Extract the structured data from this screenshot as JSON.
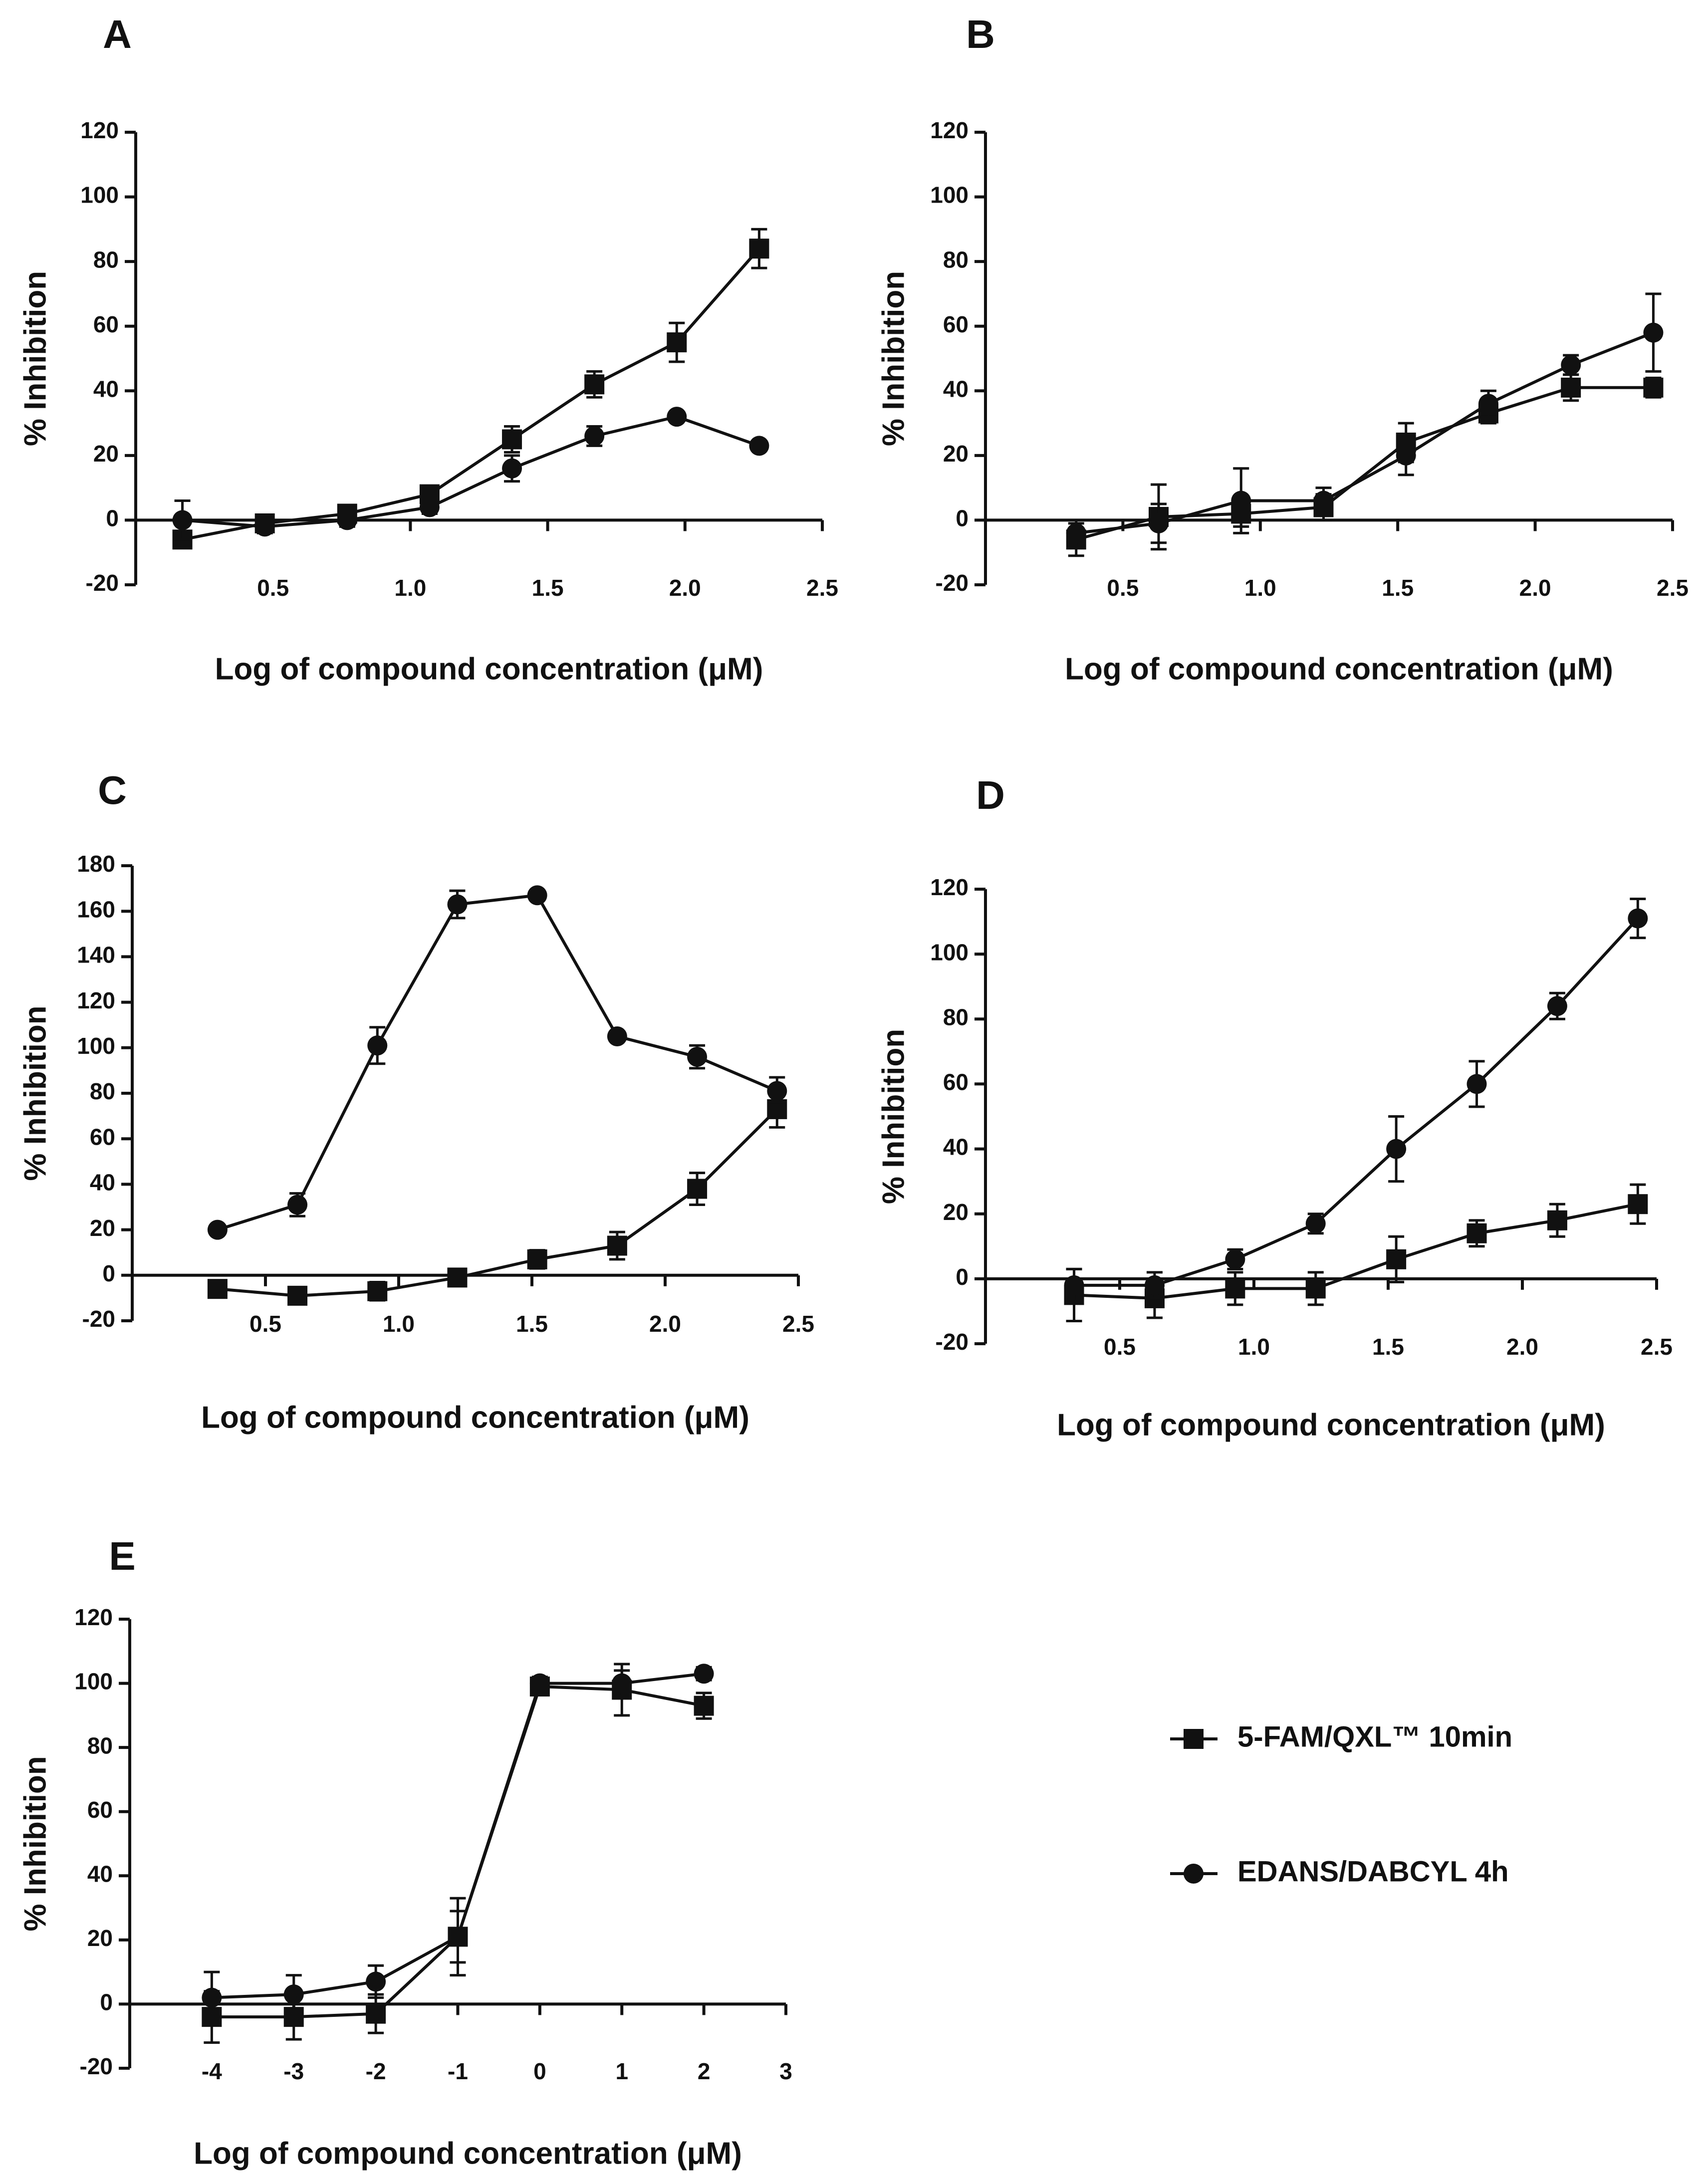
{
  "legend": [
    {
      "marker": "square",
      "label": "5-FAM/QXL™   10min"
    },
    {
      "marker": "circle",
      "label": "EDANS/DABCYL 4h"
    }
  ],
  "chart_data": [
    {
      "panel": "A",
      "type": "line",
      "xlabel": "Log of compound concentration (μM)",
      "ylabel": "% Inhibition",
      "xlim": [
        0.0,
        2.5
      ],
      "ylim": [
        -20,
        120
      ],
      "xticks": [
        "0.5",
        "1.0",
        "1.5",
        "2.0",
        "2.5"
      ],
      "xtick_values": [
        0.5,
        1.0,
        1.5,
        2.0,
        2.5
      ],
      "yticks": [
        -20,
        0,
        20,
        40,
        60,
        80,
        100,
        120
      ],
      "series": [
        {
          "name": "5-FAM/QXL™   10min",
          "marker": "square",
          "x": [
            0.17,
            0.47,
            0.77,
            1.07,
            1.37,
            1.67,
            1.97,
            2.27
          ],
          "y": [
            -6,
            -1,
            2,
            8,
            25,
            42,
            55,
            84
          ],
          "err": [
            2,
            2,
            2,
            2,
            4,
            4,
            6,
            6
          ]
        },
        {
          "name": "EDANS/DABCYL 4h",
          "marker": "circle",
          "x": [
            0.17,
            0.47,
            0.77,
            1.07,
            1.37,
            1.67,
            1.97,
            2.27
          ],
          "y": [
            0,
            -2,
            0,
            4,
            16,
            26,
            32,
            23
          ],
          "err": [
            6,
            2,
            2,
            2,
            4,
            3,
            1,
            1
          ]
        }
      ]
    },
    {
      "panel": "B",
      "type": "line",
      "xlabel": "Log of compound concentration (μM)",
      "ylabel": "% Inhibition",
      "xlim": [
        0.0,
        2.5
      ],
      "ylim": [
        -20,
        120
      ],
      "xticks": [
        "0.5",
        "1.0",
        "1.5",
        "2.0",
        "2.5"
      ],
      "xtick_values": [
        0.5,
        1.0,
        1.5,
        2.0,
        2.5
      ],
      "yticks": [
        -20,
        0,
        20,
        40,
        60,
        80,
        100,
        120
      ],
      "series": [
        {
          "name": "5-FAM/QXL™   10min",
          "marker": "square",
          "x": [
            0.33,
            0.63,
            0.93,
            1.23,
            1.53,
            1.83,
            2.13,
            2.43
          ],
          "y": [
            -6,
            1,
            2,
            4,
            24,
            33,
            41,
            41
          ],
          "err": [
            5,
            10,
            4,
            4,
            6,
            3,
            4,
            3
          ]
        },
        {
          "name": "EDANS/DABCYL 4h",
          "marker": "circle",
          "x": [
            0.33,
            0.63,
            0.93,
            1.23,
            1.53,
            1.83,
            2.13,
            2.43
          ],
          "y": [
            -4,
            -1,
            6,
            6,
            20,
            36,
            48,
            58
          ],
          "err": [
            4,
            6,
            10,
            4,
            6,
            4,
            3,
            12
          ]
        }
      ]
    },
    {
      "panel": "C",
      "type": "line",
      "xlabel": "Log of compound concentration (μM)",
      "ylabel": "% Inhibition",
      "xlim": [
        0.0,
        2.5
      ],
      "ylim": [
        -20,
        180
      ],
      "xticks": [
        "0.5",
        "1.0",
        "1.5",
        "2.0",
        "2.5"
      ],
      "xtick_values": [
        0.5,
        1.0,
        1.5,
        2.0,
        2.5
      ],
      "yticks": [
        -20,
        0,
        20,
        40,
        60,
        80,
        100,
        120,
        140,
        160,
        180
      ],
      "series": [
        {
          "name": "5-FAM/QXL™   10min",
          "marker": "square",
          "x": [
            0.32,
            0.62,
            0.92,
            1.22,
            1.52,
            1.82,
            2.12,
            2.42
          ],
          "y": [
            -6,
            -9,
            -7,
            -1,
            7,
            13,
            38,
            73
          ],
          "err": [
            2,
            3,
            4,
            2,
            4,
            6,
            7,
            8
          ]
        },
        {
          "name": "EDANS/DABCYL 4h",
          "marker": "circle",
          "x": [
            0.32,
            0.62,
            0.92,
            1.22,
            1.52,
            1.82,
            2.12,
            2.42
          ],
          "y": [
            20,
            31,
            101,
            163,
            167,
            105,
            96,
            81
          ],
          "err": [
            2,
            5,
            8,
            6,
            2,
            2,
            5,
            6
          ]
        }
      ]
    },
    {
      "panel": "D",
      "type": "line",
      "xlabel": "Log of compound concentration (μM)",
      "ylabel": "% Inhibition",
      "xlim": [
        0.0,
        2.5
      ],
      "ylim": [
        -20,
        120
      ],
      "xticks": [
        "0.5",
        "1.0",
        "1.5",
        "2.0",
        "2.5"
      ],
      "xtick_values": [
        0.5,
        1.0,
        1.5,
        2.0,
        2.5
      ],
      "yticks": [
        -20,
        0,
        20,
        40,
        60,
        80,
        100,
        120
      ],
      "series": [
        {
          "name": "5-FAM/QXL™   10min",
          "marker": "square",
          "x": [
            0.33,
            0.63,
            0.93,
            1.23,
            1.53,
            1.83,
            2.13,
            2.43
          ],
          "y": [
            -5,
            -6,
            -3,
            -3,
            6,
            14,
            18,
            23
          ],
          "err": [
            8,
            6,
            5,
            5,
            7,
            4,
            5,
            6
          ]
        },
        {
          "name": "EDANS/DABCYL 4h",
          "marker": "circle",
          "x": [
            0.33,
            0.63,
            0.93,
            1.23,
            1.53,
            1.83,
            2.13,
            2.43
          ],
          "y": [
            -2,
            -2,
            6,
            17,
            40,
            60,
            84,
            111
          ],
          "err": [
            5,
            4,
            3,
            3,
            10,
            7,
            4,
            6
          ]
        }
      ]
    },
    {
      "panel": "E",
      "type": "line",
      "xlabel": "Log of compound concentration (μM)",
      "ylabel": "% Inhibition",
      "xlim": [
        -5,
        3
      ],
      "ylim": [
        -20,
        120
      ],
      "xticks": [
        "-4",
        "-3",
        "-2",
        "-1",
        "0",
        "1",
        "2",
        "3"
      ],
      "xtick_values": [
        -4,
        -3,
        -2,
        -1,
        0,
        1,
        2,
        3
      ],
      "yticks": [
        -20,
        0,
        20,
        40,
        60,
        80,
        100,
        120
      ],
      "series": [
        {
          "name": "5-FAM/QXL™   10min",
          "marker": "square",
          "x": [
            -4,
            -3,
            -2,
            -1,
            0,
            1,
            2
          ],
          "y": [
            -4,
            -4,
            -3,
            21,
            99,
            98,
            93
          ],
          "err": [
            8,
            7,
            6,
            12,
            2,
            8,
            4
          ]
        },
        {
          "name": "EDANS/DABCYL 4h",
          "marker": "circle",
          "x": [
            -4,
            -3,
            -2,
            -1,
            0,
            1,
            2
          ],
          "y": [
            2,
            3,
            7,
            21,
            100,
            100,
            103
          ],
          "err": [
            8,
            6,
            5,
            8,
            2,
            4,
            2
          ]
        }
      ]
    }
  ]
}
